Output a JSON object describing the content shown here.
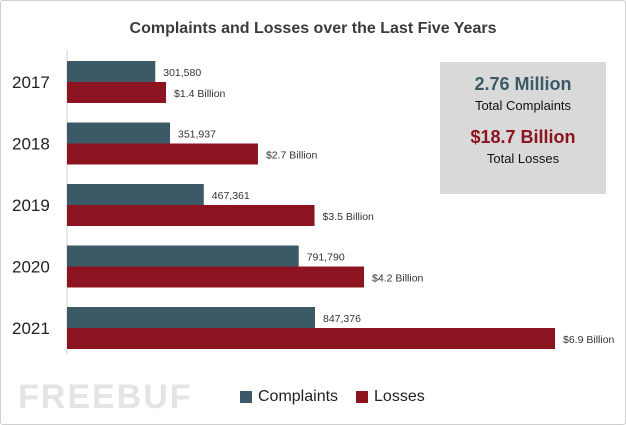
{
  "chart_data": {
    "type": "bar",
    "orientation": "horizontal",
    "title": "Complaints and Losses over the Last Five Years",
    "categories": [
      "2017",
      "2018",
      "2019",
      "2020",
      "2021"
    ],
    "series": [
      {
        "name": "Complaints",
        "color": "#3c5a66",
        "values": [
          301580,
          351937,
          467361,
          791790,
          847376
        ],
        "labels": [
          "301,580",
          "351,937",
          "467,361",
          "791,790",
          "847,376"
        ]
      },
      {
        "name": "Losses",
        "color": "#8b1420",
        "values": [
          1.4,
          2.7,
          3.5,
          4.2,
          6.9
        ],
        "labels": [
          "$1.4 Billion",
          "$2.7 Billion",
          "$3.5 Billion",
          "$4.2 Billion",
          "$6.9 Billion"
        ]
      }
    ],
    "legend": "bottom",
    "grid": false
  },
  "summary": {
    "complaints_value": "2.76 Million",
    "complaints_label": "Total Complaints",
    "losses_value": "$18.7 Billion",
    "losses_label": "Total Losses"
  },
  "watermark": "FREEBUF"
}
